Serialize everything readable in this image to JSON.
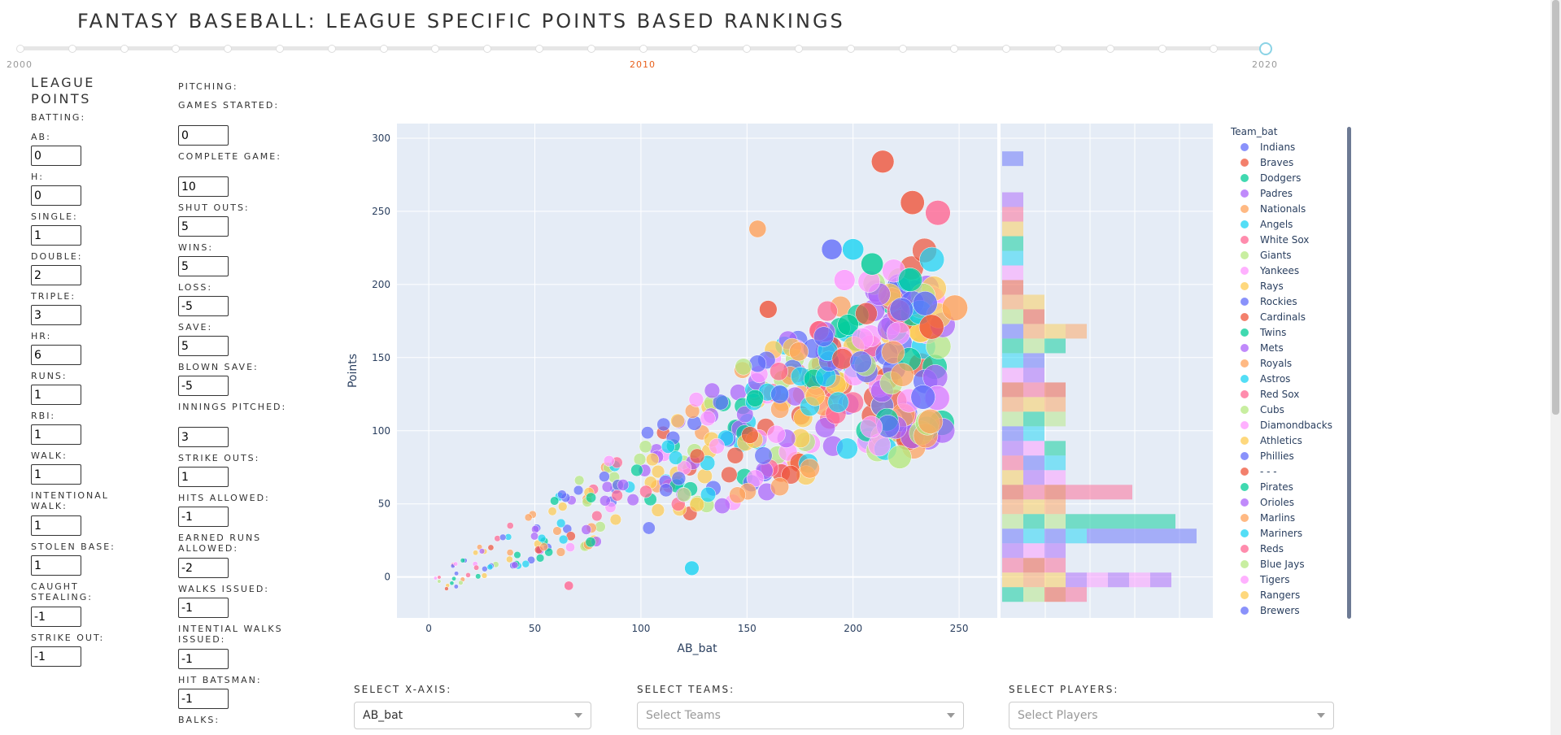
{
  "title": "FANTASY BASEBALL: LEAGUE SPECIFIC POINTS BASED RANKINGS",
  "year_slider": {
    "labels": [
      "2000",
      "2010",
      "2020"
    ],
    "selected": "2020",
    "min": 2000,
    "max": 2020
  },
  "league_points": {
    "heading": "LEAGUE POINTS",
    "batting_heading": "BATTING:",
    "batting": [
      {
        "label": "AB:",
        "value": "0"
      },
      {
        "label": "H:",
        "value": "0"
      },
      {
        "label": "SINGLE:",
        "value": "1"
      },
      {
        "label": "DOUBLE:",
        "value": "2"
      },
      {
        "label": "TRIPLE:",
        "value": "3"
      },
      {
        "label": "HR:",
        "value": "6"
      },
      {
        "label": "RUNS:",
        "value": "1"
      },
      {
        "label": "RBI:",
        "value": "1"
      },
      {
        "label": "WALK:",
        "value": "1"
      },
      {
        "label": "INTENTIONAL WALK:",
        "value": "1"
      },
      {
        "label": "STOLEN BASE:",
        "value": "1"
      },
      {
        "label": "CAUGHT STEALING:",
        "value": "-1"
      },
      {
        "label": "STRIKE OUT:",
        "value": "-1"
      }
    ],
    "pitching_heading": "PITCHING:",
    "pitching": [
      {
        "label": "GAMES STARTED:",
        "value": "0"
      },
      {
        "label": "COMPLETE GAME:",
        "value": "10"
      },
      {
        "label": "SHUT OUTS:",
        "value": "5"
      },
      {
        "label": "WINS:",
        "value": "5"
      },
      {
        "label": "LOSS:",
        "value": "-5"
      },
      {
        "label": "SAVE:",
        "value": "5"
      },
      {
        "label": "BLOWN SAVE:",
        "value": "-5"
      },
      {
        "label": "INNINGS PITCHED:",
        "value": "3"
      },
      {
        "label": "STRIKE OUTS:",
        "value": "1"
      },
      {
        "label": "HITS ALLOWED:",
        "value": "-1"
      },
      {
        "label": "EARNED RUNS ALLOWED:",
        "value": "-2"
      },
      {
        "label": "WALKS ISSUED:",
        "value": "-1"
      },
      {
        "label": "INTENTIAL WALKS ISSUED:",
        "value": "-1"
      },
      {
        "label": "HIT BATSMAN:",
        "value": "-1"
      },
      {
        "label": "BALKS:",
        "value": ""
      }
    ]
  },
  "chart_data": {
    "type": "scatter",
    "xlabel": "AB_bat",
    "ylabel": "Points",
    "xlim": [
      -15,
      268
    ],
    "ylim": [
      -28,
      310
    ],
    "x_ticks": [
      0,
      50,
      100,
      150,
      200,
      250
    ],
    "y_ticks": [
      0,
      50,
      100,
      150,
      200,
      250,
      300
    ],
    "legend_title": "Team_bat",
    "teams": [
      {
        "name": "Indians",
        "color": "#636efa"
      },
      {
        "name": "Braves",
        "color": "#EF553B"
      },
      {
        "name": "Dodgers",
        "color": "#00cc96"
      },
      {
        "name": "Padres",
        "color": "#ab63fa"
      },
      {
        "name": "Nationals",
        "color": "#FFA15A"
      },
      {
        "name": "Angels",
        "color": "#19d3f3"
      },
      {
        "name": "White Sox",
        "color": "#FF6692"
      },
      {
        "name": "Giants",
        "color": "#B6E880"
      },
      {
        "name": "Yankees",
        "color": "#FF97FF"
      },
      {
        "name": "Rays",
        "color": "#FECB52"
      },
      {
        "name": "Rockies",
        "color": "#636efa"
      },
      {
        "name": "Cardinals",
        "color": "#EF553B"
      },
      {
        "name": "Twins",
        "color": "#00cc96"
      },
      {
        "name": "Mets",
        "color": "#ab63fa"
      },
      {
        "name": "Royals",
        "color": "#FFA15A"
      },
      {
        "name": "Astros",
        "color": "#19d3f3"
      },
      {
        "name": "Red Sox",
        "color": "#FF6692"
      },
      {
        "name": "Cubs",
        "color": "#B6E880"
      },
      {
        "name": "Diamondbacks",
        "color": "#FF97FF"
      },
      {
        "name": "Athletics",
        "color": "#FECB52"
      },
      {
        "name": "Phillies",
        "color": "#636efa"
      },
      {
        "name": "- - -",
        "color": "#EF553B"
      },
      {
        "name": "Pirates",
        "color": "#00cc96"
      },
      {
        "name": "Orioles",
        "color": "#ab63fa"
      },
      {
        "name": "Marlins",
        "color": "#FFA15A"
      },
      {
        "name": "Mariners",
        "color": "#19d3f3"
      },
      {
        "name": "Reds",
        "color": "#FF6692"
      },
      {
        "name": "Blue Jays",
        "color": "#B6E880"
      },
      {
        "name": "Tigers",
        "color": "#FF97FF"
      },
      {
        "name": "Rangers",
        "color": "#FECB52"
      },
      {
        "name": "Brewers",
        "color": "#636efa"
      }
    ],
    "highlight_points": [
      {
        "x": 214,
        "y": 284,
        "team": "Braves"
      },
      {
        "x": 228,
        "y": 256,
        "team": "Braves"
      },
      {
        "x": 240,
        "y": 249,
        "team": "White Sox"
      },
      {
        "x": 155,
        "y": 238,
        "team": "Nationals"
      },
      {
        "x": 190,
        "y": 224,
        "team": "Indians"
      },
      {
        "x": 200,
        "y": 224,
        "team": "Angels"
      },
      {
        "x": 209,
        "y": 214,
        "team": "Dodgers"
      },
      {
        "x": 196,
        "y": 203,
        "team": "Yankees"
      },
      {
        "x": 248,
        "y": 184,
        "team": "Nationals"
      },
      {
        "x": 234,
        "y": 187,
        "team": "Indians"
      },
      {
        "x": 160,
        "y": 183,
        "team": "Braves"
      },
      {
        "x": 237,
        "y": 171,
        "team": "Braves"
      },
      {
        "x": 222,
        "y": 82,
        "team": "Giants"
      },
      {
        "x": 124,
        "y": 6,
        "team": "Angels"
      },
      {
        "x": 66,
        "y": -6,
        "team": "White Sox"
      },
      {
        "x": 233,
        "y": 123,
        "team": "Indians"
      }
    ],
    "marginal_histogram": {
      "type": "bar",
      "orientation": "horizontal",
      "note": "stacked marginal histogram of Points by Team_bat"
    }
  },
  "dropdowns": {
    "x_axis": {
      "label": "SELECT X-AXIS:",
      "value": "AB_bat"
    },
    "teams": {
      "label": "SELECT TEAMS:",
      "placeholder": "Select Teams"
    },
    "players": {
      "label": "SELECT PLAYERS:",
      "placeholder": "Select Players"
    }
  }
}
